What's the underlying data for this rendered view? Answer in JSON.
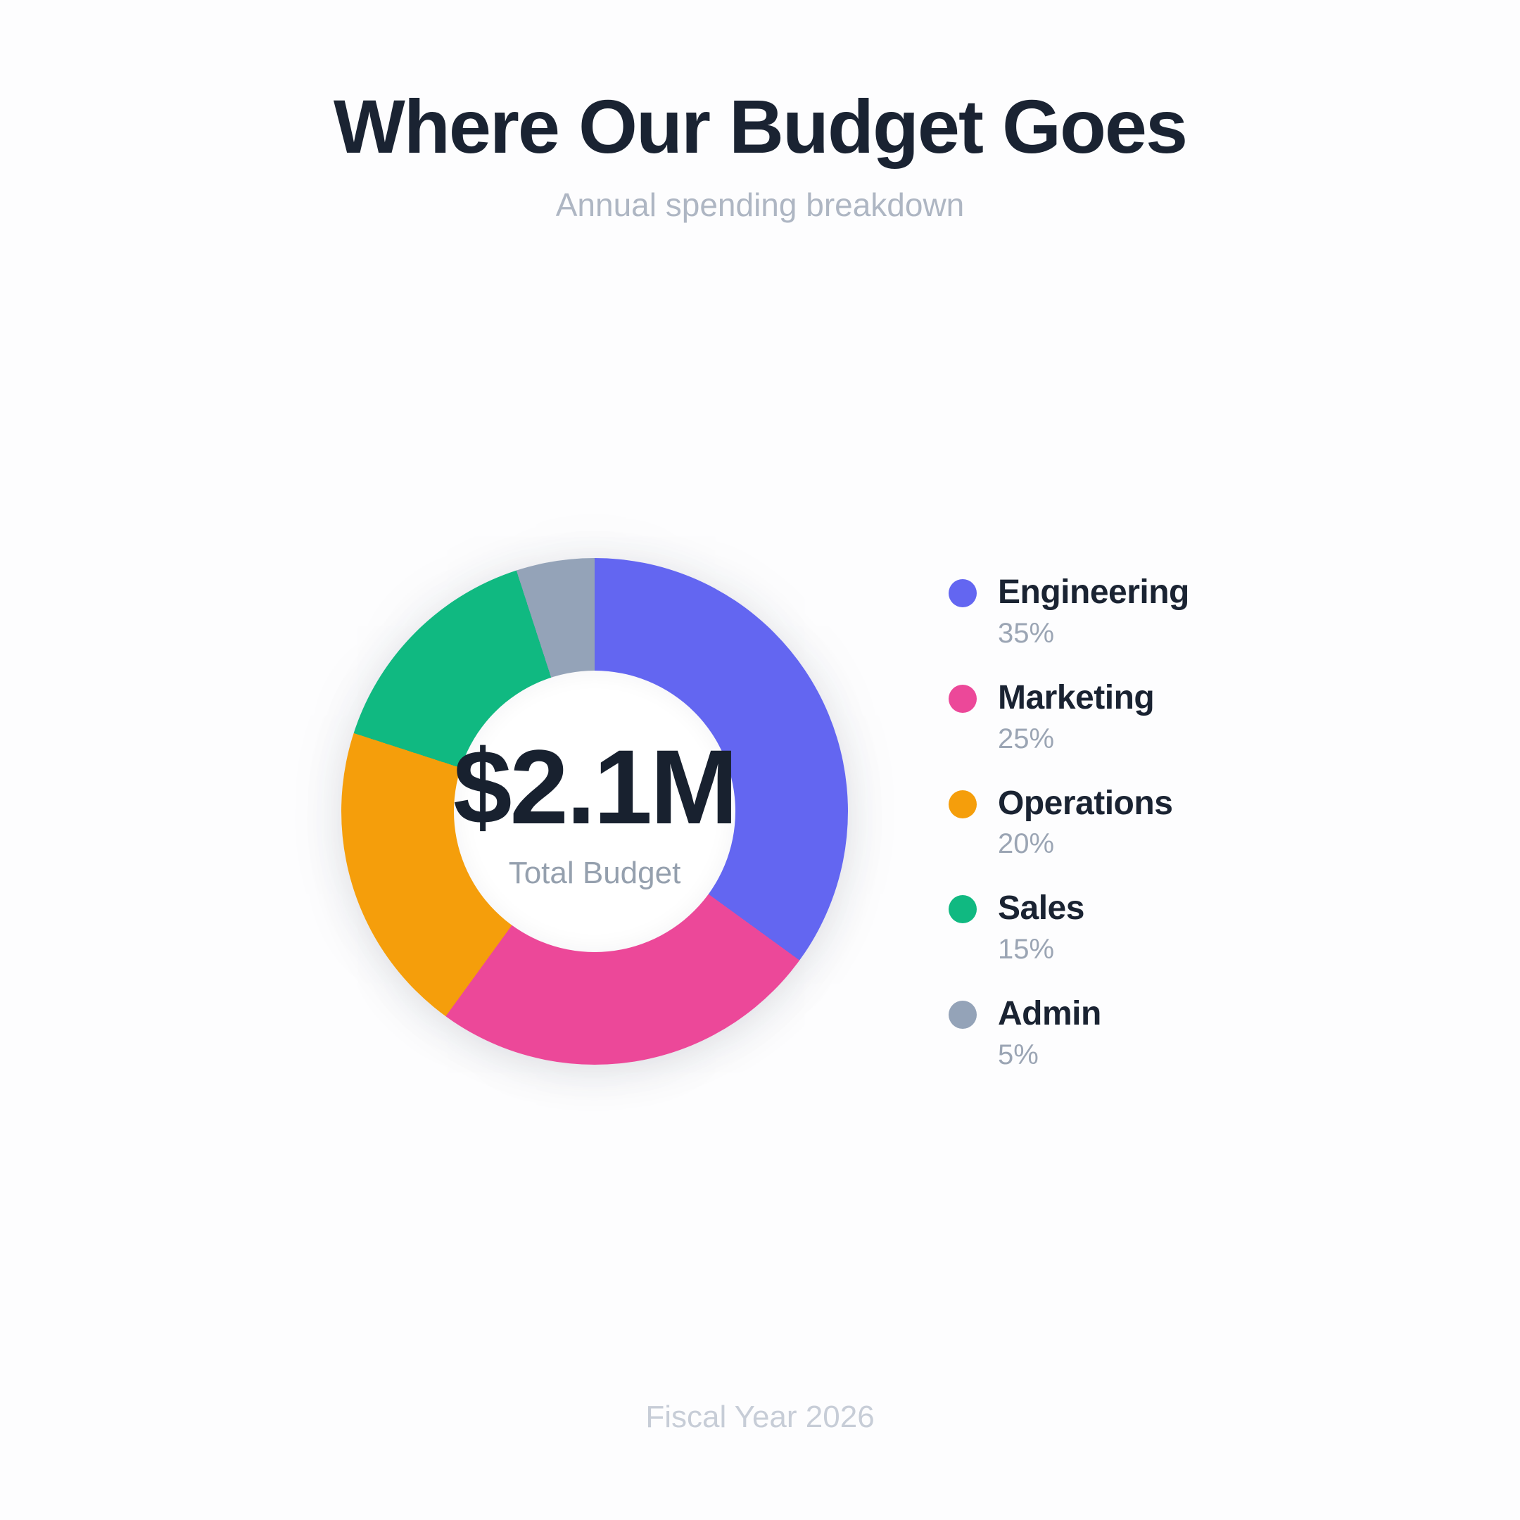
{
  "header": {
    "title": "Where Our Budget Goes",
    "subtitle": "Annual spending breakdown"
  },
  "footer": {
    "note": "Fiscal Year 2026"
  },
  "chart_data": {
    "type": "pie",
    "variant": "donut",
    "title": "Where Our Budget Goes",
    "subtitle": "Annual spending breakdown",
    "center": {
      "value": "$2.1M",
      "label": "Total Budget"
    },
    "unit": "%",
    "start_angle_deg": 0,
    "direction": "clockwise",
    "legend_position": "right",
    "categories": [
      "Engineering",
      "Marketing",
      "Operations",
      "Sales",
      "Admin"
    ],
    "values": [
      35,
      25,
      20,
      15,
      5
    ],
    "items": [
      {
        "label": "Engineering",
        "value": 35,
        "pct_label": "35%",
        "color": "#6366f1"
      },
      {
        "label": "Marketing",
        "value": 25,
        "pct_label": "25%",
        "color": "#ec4899"
      },
      {
        "label": "Operations",
        "value": 20,
        "pct_label": "20%",
        "color": "#f59e0b"
      },
      {
        "label": "Sales",
        "value": 15,
        "pct_label": "15%",
        "color": "#10b981"
      },
      {
        "label": "Admin",
        "value": 5,
        "pct_label": "5%",
        "color": "#94a3b8"
      }
    ]
  }
}
